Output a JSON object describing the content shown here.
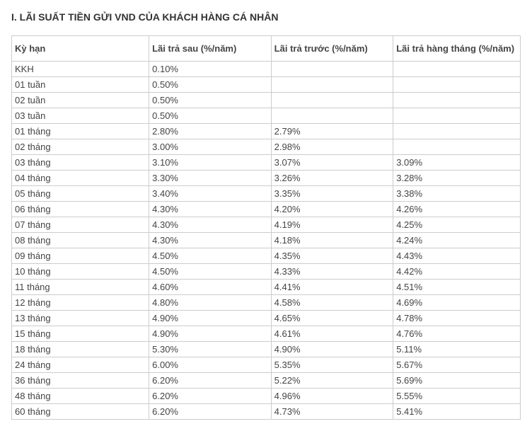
{
  "title": "I. LÃI SUẤT TIỀN GỬI VND CỦA KHÁCH HÀNG CÁ NHÂN",
  "table": {
    "columns": [
      "Kỳ hạn",
      "Lãi trả sau (%/năm)",
      "Lãi trả trước (%/năm)",
      "Lãi trả hàng tháng (%/năm)"
    ],
    "rows": [
      [
        "KKH",
        "0.10%",
        "",
        ""
      ],
      [
        "01 tuần",
        "0.50%",
        "",
        ""
      ],
      [
        "02 tuần",
        "0.50%",
        "",
        ""
      ],
      [
        "03 tuần",
        "0.50%",
        "",
        ""
      ],
      [
        "01 tháng",
        "2.80%",
        "2.79%",
        ""
      ],
      [
        "02 tháng",
        "3.00%",
        "2.98%",
        ""
      ],
      [
        "03 tháng",
        "3.10%",
        "3.07%",
        "3.09%"
      ],
      [
        "04 tháng",
        "3.30%",
        "3.26%",
        "3.28%"
      ],
      [
        "05 tháng",
        "3.40%",
        "3.35%",
        "3.38%"
      ],
      [
        "06 tháng",
        "4.30%",
        "4.20%",
        "4.26%"
      ],
      [
        "07 tháng",
        "4.30%",
        "4.19%",
        "4.25%"
      ],
      [
        "08 tháng",
        "4.30%",
        "4.18%",
        "4.24%"
      ],
      [
        "09 tháng",
        "4.50%",
        "4.35%",
        "4.43%"
      ],
      [
        "10 tháng",
        "4.50%",
        "4.33%",
        "4.42%"
      ],
      [
        "11 tháng",
        "4.60%",
        "4.41%",
        "4.51%"
      ],
      [
        "12 tháng",
        "4.80%",
        "4.58%",
        "4.69%"
      ],
      [
        "13 tháng",
        "4.90%",
        "4.65%",
        "4.78%"
      ],
      [
        "15 tháng",
        "4.90%",
        "4.61%",
        "4.76%"
      ],
      [
        "18 tháng",
        "5.30%",
        "4.90%",
        "5.11%"
      ],
      [
        "24 tháng",
        "6.00%",
        "5.35%",
        "5.67%"
      ],
      [
        "36 tháng",
        "6.20%",
        "5.22%",
        "5.69%"
      ],
      [
        "48 tháng",
        "6.20%",
        "4.96%",
        "5.55%"
      ],
      [
        "60 tháng",
        "6.20%",
        "4.73%",
        "5.41%"
      ]
    ]
  },
  "styling": {
    "title_color": "#333333",
    "title_fontsize": 14,
    "cell_fontsize": 13,
    "cell_text_color": "#444444",
    "border_color": "#cccccc",
    "background_color": "#ffffff"
  }
}
